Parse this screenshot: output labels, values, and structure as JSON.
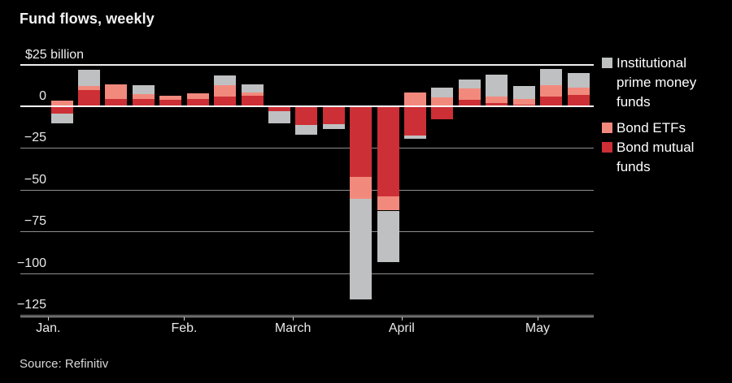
{
  "title": "Fund flows, weekly",
  "source": "Source: Refinitiv",
  "colors": {
    "background": "#000000",
    "institutional_prime": "#bfc0c1",
    "bond_etfs": "#f2897d",
    "bond_mutual": "#cc2f35",
    "zero_line": "#ffffff",
    "gridline": "#8f8f8f",
    "text": "#e9e9e9"
  },
  "legend": {
    "items": [
      {
        "key": "institutional_prime",
        "label": "Institutional prime money funds",
        "color": "#bfc0c1"
      },
      {
        "key": "bond_etfs",
        "label": "Bond ETFs",
        "color": "#f2897d"
      },
      {
        "key": "bond_mutual",
        "label": "Bond mutual funds",
        "color": "#cc2f35"
      }
    ]
  },
  "chart_data": {
    "type": "bar",
    "stacked": true,
    "title": "Fund flows, weekly",
    "unit": "$ billion",
    "grid": true,
    "legend_position": "right",
    "y_axis": {
      "top_label": "$25 billion",
      "ticks": [
        25,
        0,
        -25,
        -50,
        -75,
        -100,
        -125
      ],
      "range": [
        -125,
        25
      ]
    },
    "x_axis": {
      "month_ticks": [
        "Jan.",
        "Feb.",
        "March",
        "April",
        "May"
      ],
      "weeks_per_month": [
        5,
        4,
        4,
        5,
        2
      ],
      "total_weeks": 20
    },
    "series": [
      {
        "key": "bond_mutual",
        "name": "Bond mutual funds",
        "color": "#cc2f35",
        "values": [
          -4.5,
          9.5,
          4.5,
          4.5,
          4,
          4.5,
          6,
          6.5,
          -3,
          -11,
          -10.5,
          -42.5,
          -54,
          -17.5,
          -8,
          4,
          2,
          1,
          6,
          7
        ]
      },
      {
        "key": "bond_etfs",
        "name": "Bond ETFs",
        "color": "#f2897d",
        "values": [
          3.5,
          2.5,
          8.5,
          3,
          2.5,
          3.5,
          6.5,
          2,
          0,
          0,
          0,
          -13,
          -8.5,
          8.5,
          5.5,
          6.5,
          4,
          3.5,
          6.5,
          4
        ]
      },
      {
        "key": "institutional_prime",
        "name": "Institutional prime money funds",
        "color": "#bfc0c1",
        "values": [
          -5.5,
          10,
          0,
          5,
          0,
          0,
          6,
          4.5,
          -7,
          -6,
          -3,
          -60.5,
          -31,
          -2,
          5.5,
          5.5,
          13,
          7.5,
          10,
          9
        ]
      }
    ]
  }
}
